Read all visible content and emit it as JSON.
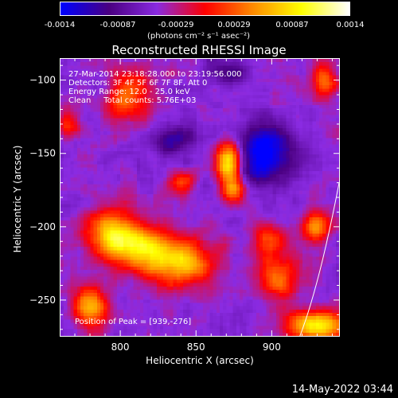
{
  "colorbar": {
    "ticks": [
      "-0.0014",
      "-0.00087",
      "-0.00029",
      "0.00029",
      "0.00087",
      "0.0014"
    ],
    "unit_label": "(photons cm⁻² s⁻¹ asec⁻²)",
    "colors": [
      "#0000ff",
      "#4b0082",
      "#8a2be2",
      "#ff0000",
      "#ff8c00",
      "#ffff00",
      "#ffffff"
    ]
  },
  "chart_data": {
    "type": "heatmap",
    "title": "Reconstructed RHESSI Image",
    "xlabel": "Heliocentric X (arcsec)",
    "ylabel": "Heliocentric Y (arcsec)",
    "xlim": [
      760,
      945
    ],
    "ylim": [
      -275,
      -85
    ],
    "x_ticks": [
      800,
      850,
      900
    ],
    "y_ticks": [
      -100,
      -150,
      -200,
      -250
    ],
    "annotations": [
      "27-Mar-2014 23:18:28.000 to 23:19:56.000",
      "Detectors: 3F 4F 5F 6F 7F 8F, Att 0",
      "Energy Range: 12.0 - 25.0 keV",
      "Clean     Total counts: 5.76E+03"
    ],
    "peak_label": "Position of Peak = [939,-276]",
    "limb_curve": [
      [
        919,
        -275
      ],
      [
        932,
        -240
      ],
      [
        945,
        -170
      ]
    ],
    "blobs": [
      {
        "x": 872,
        "y": -155,
        "sx": 6,
        "sy": 10,
        "a": 1.0
      },
      {
        "x": 875,
        "y": -175,
        "sx": 5,
        "sy": 6,
        "a": 0.6
      },
      {
        "x": 795,
        "y": -205,
        "sx": 12,
        "sy": 12,
        "a": 0.75
      },
      {
        "x": 815,
        "y": -215,
        "sx": 14,
        "sy": 10,
        "a": 0.7
      },
      {
        "x": 840,
        "y": -225,
        "sx": 15,
        "sy": 12,
        "a": 0.7
      },
      {
        "x": 780,
        "y": -255,
        "sx": 8,
        "sy": 10,
        "a": 0.75
      },
      {
        "x": 930,
        "y": -268,
        "sx": 14,
        "sy": 7,
        "a": 0.9
      },
      {
        "x": 905,
        "y": -235,
        "sx": 10,
        "sy": 10,
        "a": 0.55
      },
      {
        "x": 930,
        "y": -200,
        "sx": 7,
        "sy": 8,
        "a": 0.6
      },
      {
        "x": 935,
        "y": -100,
        "sx": 6,
        "sy": 10,
        "a": 0.5
      },
      {
        "x": 805,
        "y": -110,
        "sx": 10,
        "sy": 12,
        "a": 0.55
      },
      {
        "x": 840,
        "y": -170,
        "sx": 7,
        "sy": 6,
        "a": 0.5
      },
      {
        "x": 898,
        "y": -210,
        "sx": 8,
        "sy": 8,
        "a": 0.45
      },
      {
        "x": 765,
        "y": -130,
        "sx": 5,
        "sy": 8,
        "a": 0.4
      },
      {
        "x": 895,
        "y": -150,
        "sx": 14,
        "sy": 14,
        "a": -0.7
      },
      {
        "x": 835,
        "y": -140,
        "sx": 10,
        "sy": 8,
        "a": -0.4
      },
      {
        "x": 870,
        "y": -95,
        "sx": 10,
        "sy": 6,
        "a": -0.3
      }
    ]
  },
  "footer": {
    "timestamp": "14-May-2022 03:44"
  }
}
